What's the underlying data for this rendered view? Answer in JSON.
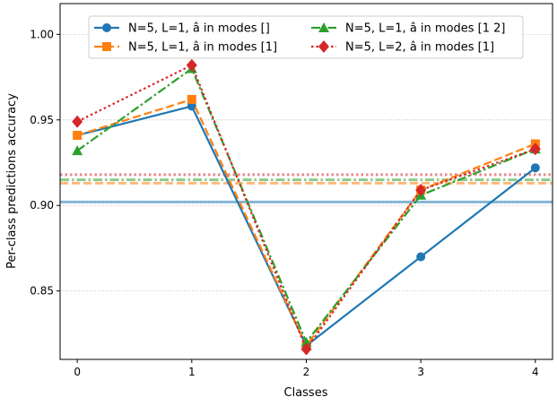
{
  "chart_data": {
    "type": "line",
    "title": "",
    "xlabel": "Classes",
    "ylabel": "Per-class predictions accuracy",
    "x": [
      0,
      1,
      2,
      3,
      4
    ],
    "x_tick_labels": [
      "0",
      "1",
      "2",
      "3",
      "4"
    ],
    "xlim": [
      -0.15,
      4.15
    ],
    "ylim": [
      0.81,
      1.018
    ],
    "y_ticks": [
      0.85,
      0.9,
      0.95,
      1.0
    ],
    "y_tick_labels": [
      "0.85",
      "0.90",
      "0.95",
      "1.00"
    ],
    "grid": "horizontal dotted",
    "legend_position": "top",
    "series": [
      {
        "name": "N=5, L=1, â in modes []",
        "color": "#1f77b4",
        "marker": "circle",
        "line_style": "solid",
        "values": [
          0.941,
          0.958,
          0.818,
          0.87,
          0.922
        ],
        "mean": 0.902
      },
      {
        "name": "N=5, L=1, â in modes [1]",
        "color": "#ff7f0e",
        "marker": "square",
        "line_style": "dashed",
        "values": [
          0.941,
          0.962,
          0.818,
          0.909,
          0.936
        ],
        "mean": 0.913
      },
      {
        "name": "N=5, L=1, â in modes [1 2]",
        "color": "#2ca02c",
        "marker": "triangle",
        "line_style": "dashdot",
        "values": [
          0.932,
          0.98,
          0.82,
          0.906,
          0.933
        ],
        "mean": 0.915
      },
      {
        "name": "N=5, L=2, â in modes [1]",
        "color": "#d62728",
        "marker": "diamond",
        "line_style": "dotted",
        "values": [
          0.949,
          0.982,
          0.816,
          0.909,
          0.933
        ],
        "mean": 0.918
      }
    ]
  }
}
